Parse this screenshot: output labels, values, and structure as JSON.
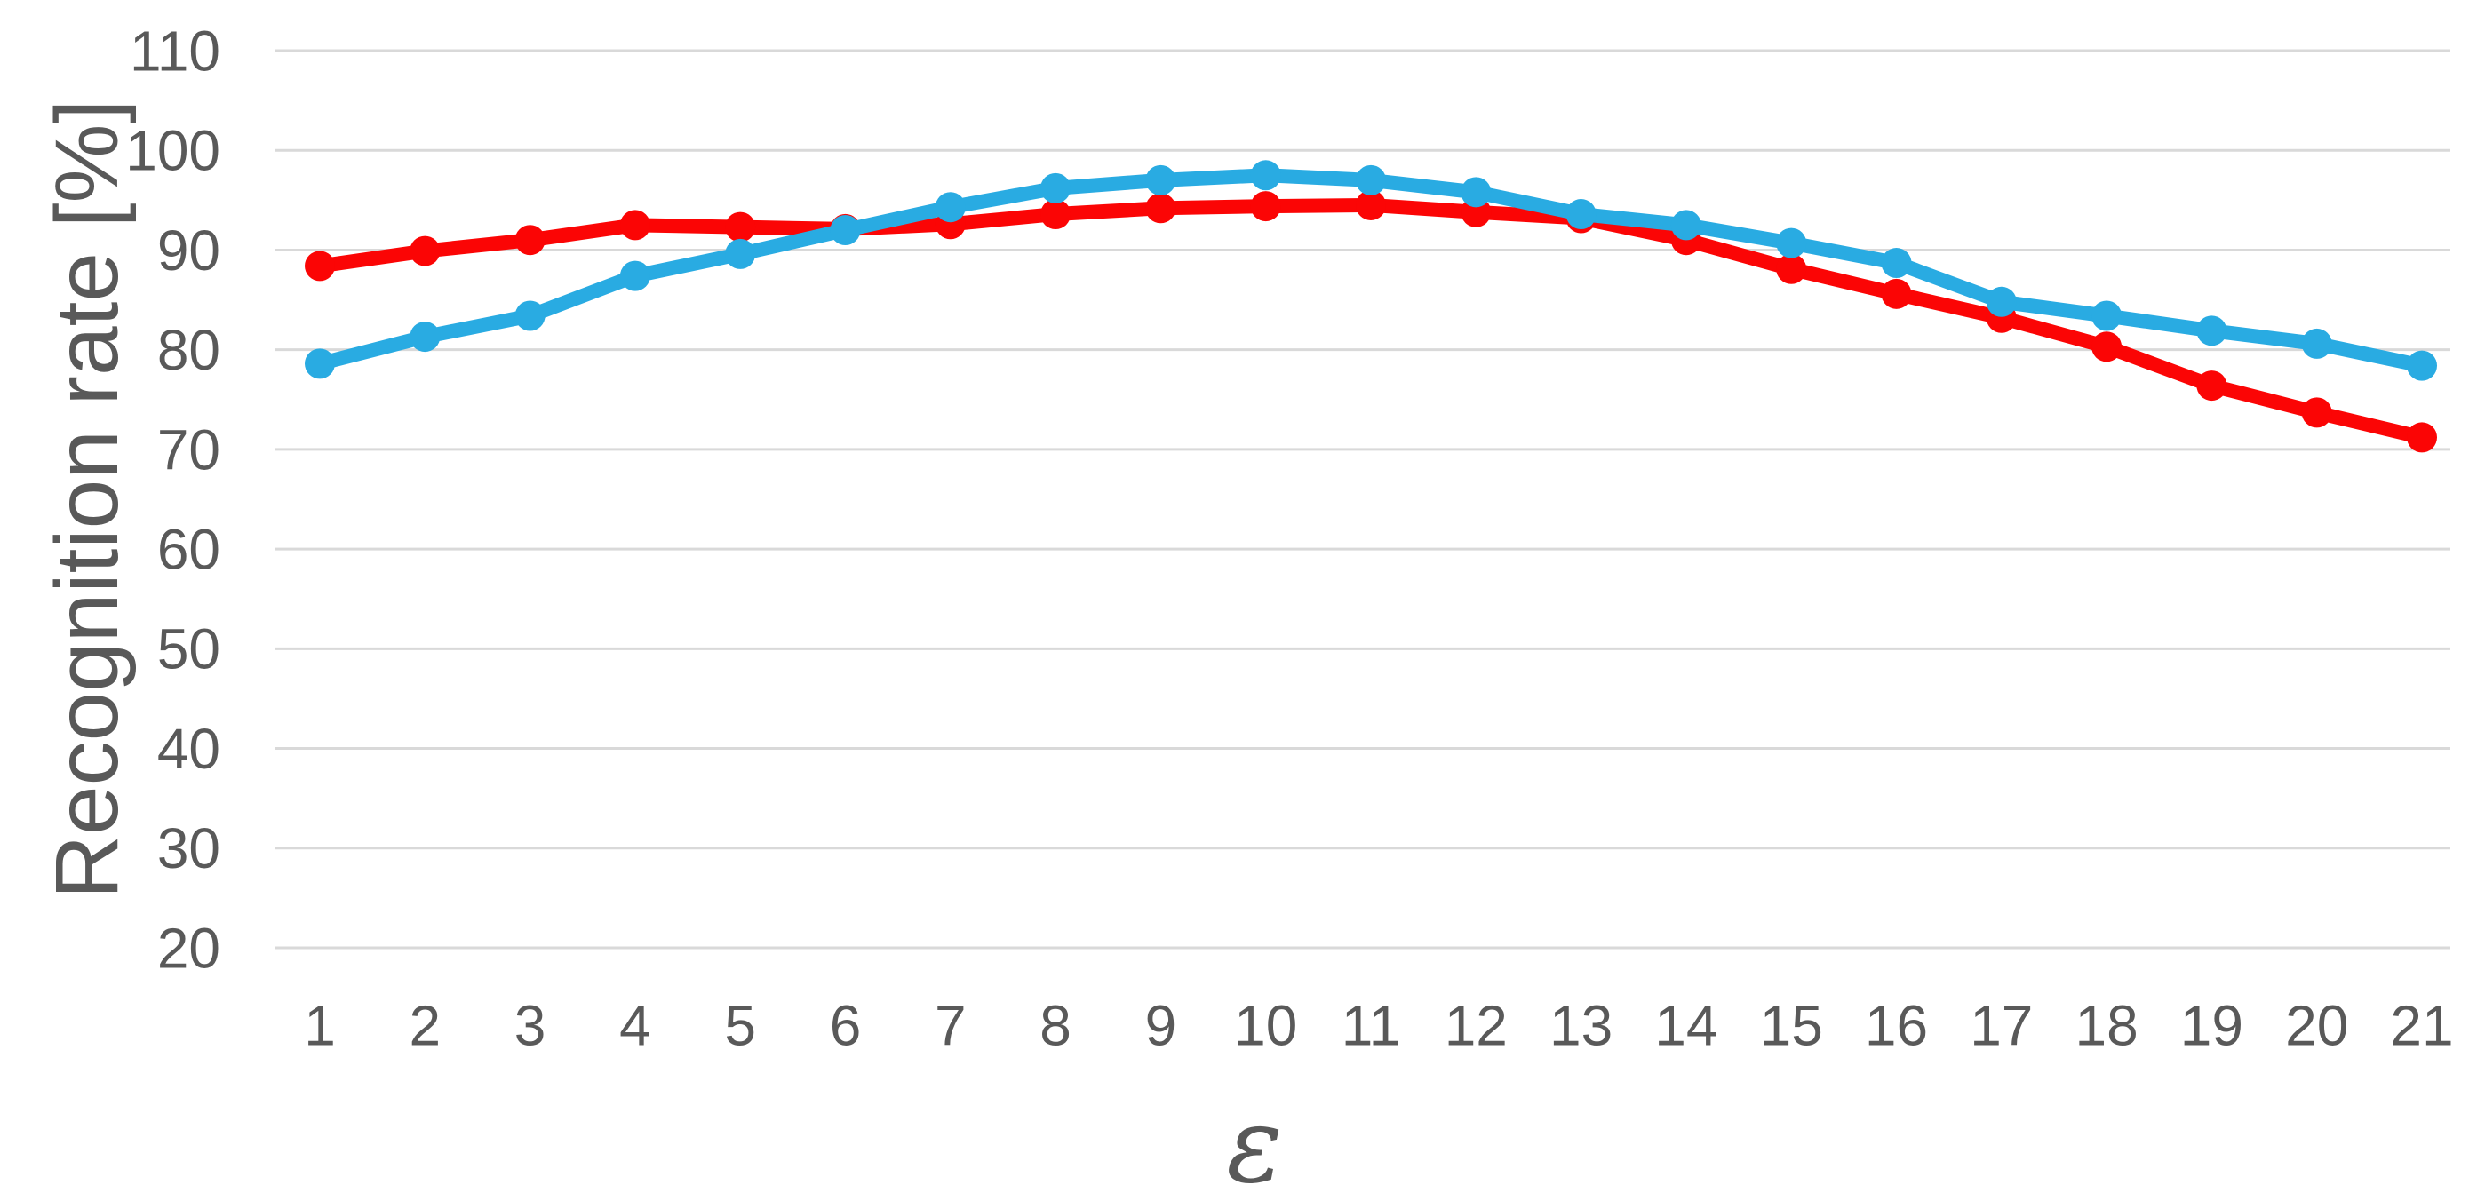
{
  "chart_data": {
    "type": "line",
    "title": "",
    "xlabel": "ε",
    "ylabel": "Recognition rate [%]",
    "x": [
      1,
      2,
      3,
      4,
      5,
      6,
      7,
      8,
      9,
      10,
      11,
      12,
      13,
      14,
      15,
      16,
      17,
      18,
      19,
      20,
      21
    ],
    "series": [
      {
        "name": "red",
        "color": "#fb0505",
        "marker": "circle",
        "values": [
          88.4,
          89.9,
          91.0,
          92.5,
          92.3,
          92.1,
          92.6,
          93.6,
          94.2,
          94.4,
          94.5,
          93.8,
          93.2,
          91.0,
          88.1,
          85.6,
          83.2,
          80.3,
          76.4,
          73.7,
          71.2
        ]
      },
      {
        "name": "blue",
        "color": "#29abe2",
        "marker": "circle",
        "values": [
          78.6,
          81.3,
          83.4,
          87.4,
          89.6,
          92.0,
          94.3,
          96.2,
          97.0,
          97.5,
          97.0,
          95.8,
          93.6,
          92.5,
          90.7,
          88.7,
          84.8,
          83.4,
          81.9,
          80.6,
          78.4
        ]
      }
    ],
    "ylim": [
      20,
      110
    ],
    "ytick_step": 10,
    "yticks": [
      110,
      100,
      90,
      80,
      70,
      60,
      50,
      40,
      30,
      20
    ],
    "xticks": [
      "1",
      "2",
      "3",
      "4",
      "5",
      "6",
      "7",
      "8",
      "9",
      "10",
      "11",
      "12",
      "13",
      "14",
      "15",
      "16",
      "17",
      "18",
      "19",
      "20",
      "21"
    ],
    "grid": true,
    "grid_direction": "horizontal",
    "legend": "none",
    "background_color": "#ffffff",
    "gridline_color": "#d9d9d9",
    "axis_text_color": "#595959"
  }
}
